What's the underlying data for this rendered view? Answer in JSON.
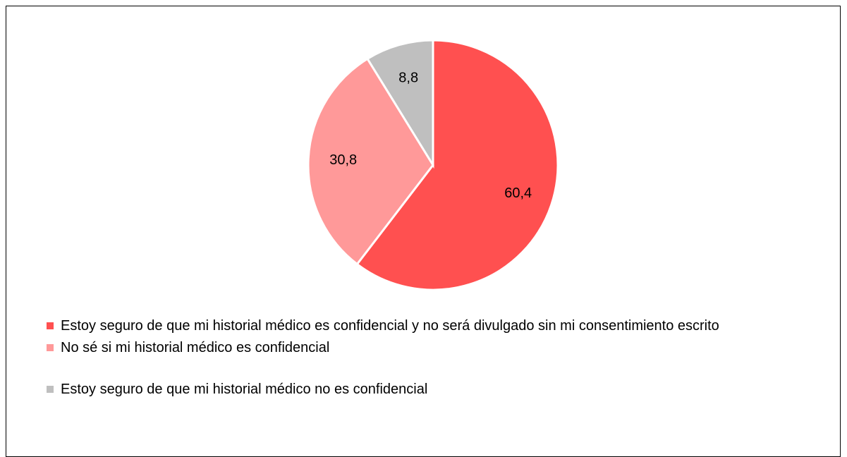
{
  "chart_data": {
    "type": "pie",
    "categories": [
      "Estoy seguro de que mi historial médico es confidencial y no será divulgado sin mi consentimiento escrito",
      "No sé si mi historial médico es confidencial",
      "Estoy seguro de que mi historial médico no es confidencial"
    ],
    "values": [
      60.4,
      30.8,
      8.8
    ],
    "value_labels": [
      "60,4",
      "30,8",
      "8,8"
    ],
    "colors": [
      "#ff5050",
      "#ff9999",
      "#bfbfbf"
    ],
    "legend": "bottom"
  }
}
